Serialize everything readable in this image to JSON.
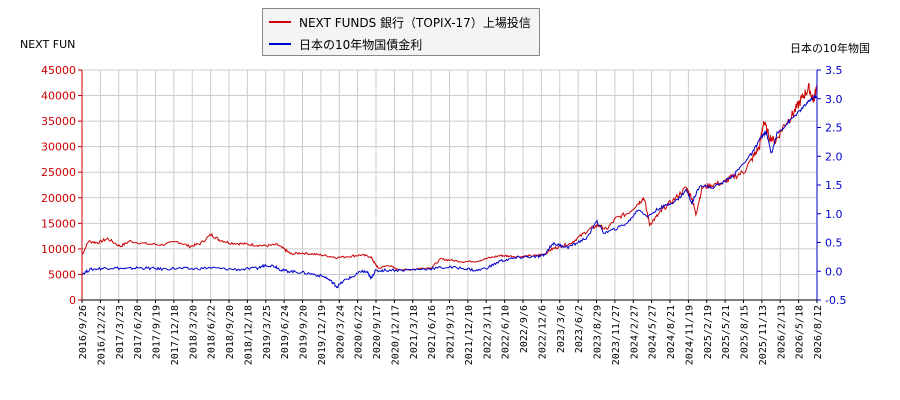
{
  "chart_data": {
    "type": "line",
    "left_axis_label": "NEXT FUN",
    "right_axis_label": "日本の10年物国",
    "series": [
      {
        "name": "NEXT FUNDS 銀行（TOPIX-17）上場投信",
        "axis": "left",
        "color": "#cc0000",
        "points": [
          [
            0,
            8800
          ],
          [
            0.08,
            11500
          ],
          [
            0.2,
            11200
          ],
          [
            0.32,
            12000
          ],
          [
            0.48,
            10500
          ],
          [
            0.6,
            11500
          ],
          [
            0.8,
            11000
          ],
          [
            1.0,
            10800
          ],
          [
            1.2,
            11400
          ],
          [
            1.35,
            10500
          ],
          [
            1.48,
            11000
          ],
          [
            1.62,
            12800
          ],
          [
            1.72,
            11800
          ],
          [
            1.85,
            11200
          ],
          [
            2.0,
            11000
          ],
          [
            2.15,
            10800
          ],
          [
            2.3,
            10600
          ],
          [
            2.45,
            10800
          ],
          [
            2.55,
            9800
          ],
          [
            2.62,
            9000
          ],
          [
            2.75,
            9200
          ],
          [
            2.9,
            9000
          ],
          [
            3.05,
            8700
          ],
          [
            3.2,
            8300
          ],
          [
            3.38,
            8600
          ],
          [
            3.5,
            8800
          ],
          [
            3.62,
            8500
          ],
          [
            3.68,
            7000
          ],
          [
            3.72,
            6200
          ],
          [
            3.85,
            6800
          ],
          [
            3.95,
            6000
          ],
          [
            4.1,
            5900
          ],
          [
            4.25,
            6200
          ],
          [
            4.38,
            6300
          ],
          [
            4.5,
            8000
          ],
          [
            4.62,
            7800
          ],
          [
            4.78,
            7500
          ],
          [
            4.95,
            7600
          ],
          [
            5.1,
            8200
          ],
          [
            5.25,
            8700
          ],
          [
            5.35,
            8600
          ],
          [
            5.5,
            8500
          ],
          [
            5.6,
            8600
          ],
          [
            5.72,
            8700
          ],
          [
            5.8,
            9000
          ],
          [
            5.9,
            10000
          ],
          [
            6.0,
            10500
          ],
          [
            6.12,
            11000
          ],
          [
            6.25,
            12500
          ],
          [
            6.38,
            14000
          ],
          [
            6.48,
            14600
          ],
          [
            6.58,
            13800
          ],
          [
            6.7,
            16000
          ],
          [
            6.85,
            17000
          ],
          [
            6.98,
            19000
          ],
          [
            7.05,
            20000
          ],
          [
            7.12,
            14800
          ],
          [
            7.22,
            16500
          ],
          [
            7.3,
            18000
          ],
          [
            7.45,
            20000
          ],
          [
            7.58,
            22000
          ],
          [
            7.65,
            20000
          ],
          [
            7.7,
            16800
          ],
          [
            7.78,
            22000
          ],
          [
            7.9,
            22500
          ],
          [
            8.05,
            23000
          ],
          [
            8.15,
            24000
          ],
          [
            8.3,
            25000
          ],
          [
            8.42,
            28000
          ],
          [
            8.5,
            30000
          ],
          [
            8.55,
            35000
          ],
          [
            8.62,
            32000
          ],
          [
            8.7,
            31000
          ],
          [
            8.8,
            34000
          ],
          [
            8.9,
            36000
          ],
          [
            8.98,
            38000
          ],
          [
            9.05,
            40000
          ],
          [
            9.12,
            41500
          ],
          [
            9.18,
            39000
          ],
          [
            9.22,
            42500
          ]
        ]
      },
      {
        "name": "日本の10年物国債金利",
        "axis": "right",
        "color": "#0000cc",
        "points": [
          [
            0,
            -0.05
          ],
          [
            0.1,
            0.03
          ],
          [
            0.25,
            0.05
          ],
          [
            0.4,
            0.06
          ],
          [
            0.55,
            0.04
          ],
          [
            0.7,
            0.06
          ],
          [
            0.85,
            0.05
          ],
          [
            1.0,
            0.04
          ],
          [
            1.2,
            0.05
          ],
          [
            1.4,
            0.04
          ],
          [
            1.6,
            0.06
          ],
          [
            1.8,
            0.04
          ],
          [
            2.0,
            0.03
          ],
          [
            2.2,
            0.05
          ],
          [
            2.3,
            0.11
          ],
          [
            2.42,
            0.09
          ],
          [
            2.5,
            0.02
          ],
          [
            2.6,
            0.0
          ],
          [
            2.75,
            -0.02
          ],
          [
            2.9,
            -0.05
          ],
          [
            3.05,
            -0.1
          ],
          [
            3.15,
            -0.2
          ],
          [
            3.2,
            -0.27
          ],
          [
            3.3,
            -0.15
          ],
          [
            3.42,
            -0.08
          ],
          [
            3.5,
            0.0
          ],
          [
            3.58,
            -0.02
          ],
          [
            3.62,
            -0.12
          ],
          [
            3.68,
            0.0
          ],
          [
            3.8,
            0.02
          ],
          [
            4.0,
            0.02
          ],
          [
            4.2,
            0.03
          ],
          [
            4.4,
            0.05
          ],
          [
            4.6,
            0.07
          ],
          [
            4.8,
            0.05
          ],
          [
            4.95,
            0.01
          ],
          [
            5.1,
            0.07
          ],
          [
            5.25,
            0.18
          ],
          [
            5.4,
            0.22
          ],
          [
            5.55,
            0.25
          ],
          [
            5.7,
            0.25
          ],
          [
            5.8,
            0.28
          ],
          [
            5.9,
            0.48
          ],
          [
            6.0,
            0.45
          ],
          [
            6.1,
            0.42
          ],
          [
            6.22,
            0.5
          ],
          [
            6.35,
            0.6
          ],
          [
            6.45,
            0.88
          ],
          [
            6.55,
            0.66
          ],
          [
            6.7,
            0.74
          ],
          [
            6.85,
            0.85
          ],
          [
            6.98,
            1.08
          ],
          [
            7.1,
            0.95
          ],
          [
            7.22,
            1.08
          ],
          [
            7.35,
            1.16
          ],
          [
            7.48,
            1.25
          ],
          [
            7.58,
            1.42
          ],
          [
            7.65,
            1.18
          ],
          [
            7.75,
            1.5
          ],
          [
            7.9,
            1.45
          ],
          [
            8.05,
            1.55
          ],
          [
            8.18,
            1.68
          ],
          [
            8.3,
            1.88
          ],
          [
            8.42,
            2.08
          ],
          [
            8.5,
            2.3
          ],
          [
            8.58,
            2.42
          ],
          [
            8.65,
            2.05
          ],
          [
            8.72,
            2.4
          ],
          [
            8.8,
            2.5
          ],
          [
            8.9,
            2.65
          ],
          [
            9.0,
            2.78
          ],
          [
            9.08,
            2.9
          ],
          [
            9.15,
            3.0
          ],
          [
            9.22,
            3.05
          ]
        ]
      }
    ],
    "x_ticks": [
      "2016/9/26",
      "2016/12/22",
      "2017/3/23",
      "2017/6/20",
      "2017/9/19",
      "2017/12/18",
      "2018/3/20",
      "2018/6/22",
      "2018/9/20",
      "2018/12/18",
      "2019/3/25",
      "2019/6/24",
      "2019/9/20",
      "2019/12/19",
      "2020/3/24",
      "2020/6/22",
      "2020/9/17",
      "2020/12/17",
      "2021/3/18",
      "2021/6/16",
      "2021/9/13",
      "2021/12/10",
      "2022/3/11",
      "2022/6/10",
      "2022/9/6",
      "2022/12/6",
      "2023/3/6",
      "2023/6/2",
      "2023/8/29",
      "2023/11/27",
      "2024/2/27",
      "2024/5/27",
      "2024/8/21",
      "2024/11/19",
      "2025/2/19",
      "2025/5/21",
      "2025/8/15",
      "2025/11/13",
      "2026/2/13",
      "2026/5/18",
      "2026/8/12"
    ],
    "y_left_ticks": [
      "0",
      "5000",
      "10000",
      "15000",
      "20000",
      "25000",
      "30000",
      "35000",
      "40000",
      "45000"
    ],
    "y_left_range": [
      0,
      45000
    ],
    "y_right_ticks": [
      "-0.5",
      "0.0",
      "0.5",
      "1.0",
      "1.5",
      "2.0",
      "2.5",
      "3.0",
      "3.5"
    ],
    "y_right_range": [
      -0.5,
      3.5
    ],
    "grid": true,
    "colors": {
      "left_axis": "#cc0000",
      "right_axis": "#0000cc",
      "grid": "#cccccc"
    },
    "legend_position": "top"
  }
}
